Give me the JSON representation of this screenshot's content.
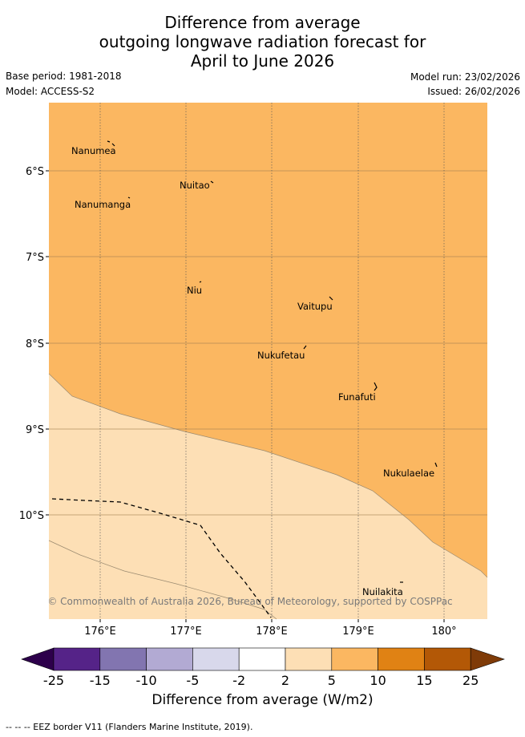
{
  "title": {
    "line1": "Difference from average",
    "line2": "outgoing longwave radiation forecast for",
    "line3": "April to June 2026"
  },
  "meta": {
    "base_period": "Base period: 1981-2018",
    "model": "Model: ACCESS-S2",
    "model_run": "Model run: 23/02/2026",
    "issued": "Issued: 26/02/2026"
  },
  "map": {
    "lat_labels": [
      "6°S",
      "7°S",
      "8°S",
      "9°S",
      "10°S"
    ],
    "lon_labels": [
      "176°E",
      "177°E",
      "178°E",
      "179°E",
      "180°"
    ],
    "places": [
      {
        "name": "Nanumea"
      },
      {
        "name": "Nuitao"
      },
      {
        "name": "Nanumanga"
      },
      {
        "name": "Niu"
      },
      {
        "name": "Vaitupu"
      },
      {
        "name": "Nukufetau"
      },
      {
        "name": "Funafuti"
      },
      {
        "name": "Nukulaelae"
      },
      {
        "name": "Nuilakita"
      }
    ],
    "copyright": "© Commonwealth of Australia 2026, Bureau of Meteorology, supported by COSPPac"
  },
  "colorbar": {
    "labels": [
      "-25",
      "-15",
      "-10",
      "-5",
      "-2",
      "2",
      "5",
      "10",
      "15",
      "25"
    ],
    "colors": [
      "#552388",
      "#8275b0",
      "#b2aad3",
      "#d8d8eb",
      "#ffffff",
      "#fddfb5",
      "#fbb761",
      "#e08214",
      "#b35806"
    ],
    "under_color": "#2d004b",
    "over_color": "#7f3b08",
    "title": "Difference from average (W/m2)"
  },
  "footnote": "-- -- -- EEZ border V11 (Flanders Marine Institute, 2019)."
}
